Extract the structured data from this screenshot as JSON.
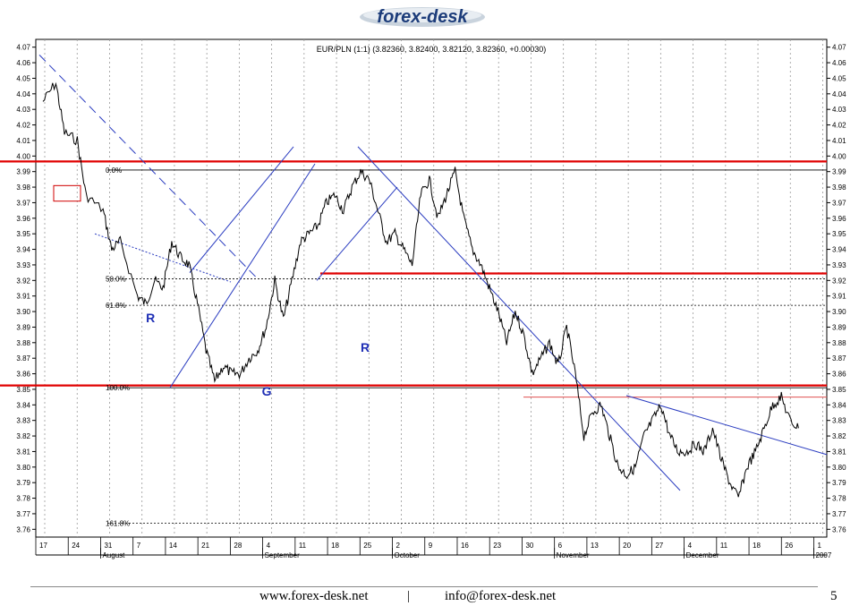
{
  "logo": {
    "text": "forex-desk"
  },
  "chart_data": {
    "type": "line",
    "title": "EUR/PLN (1:1) (3.82360, 3.82400, 3.82120, 3.82360, +0.00030)",
    "ylim": [
      3.755,
      4.075
    ],
    "y_ticks": [
      "4.07",
      "4.06",
      "4.05",
      "4.04",
      "4.03",
      "4.02",
      "4.01",
      "4.00",
      "3.99",
      "3.98",
      "3.97",
      "3.96",
      "3.95",
      "3.94",
      "3.93",
      "3.92",
      "3.91",
      "3.90",
      "3.89",
      "3.88",
      "3.87",
      "3.86",
      "3.85",
      "3.84",
      "3.83",
      "3.82",
      "3.81",
      "3.80",
      "3.79",
      "3.78",
      "3.77",
      "3.76"
    ],
    "x_day_ticks": [
      "17",
      "24",
      "31",
      "7",
      "14",
      "21",
      "28",
      "4",
      "11",
      "18",
      "25",
      "2",
      "9",
      "16",
      "23",
      "30",
      "6",
      "13",
      "20",
      "27",
      "4",
      "11",
      "18",
      "26",
      "1"
    ],
    "month_labels": [
      "August",
      "September",
      "October",
      "November",
      "December",
      "2007"
    ],
    "grid": true,
    "series": [
      {
        "x": [
          0,
          3,
          5,
          8,
          10,
          14,
          16,
          18,
          22,
          24,
          26,
          28,
          30,
          32,
          34,
          36,
          38,
          40,
          42,
          44,
          46,
          48,
          50,
          52,
          54,
          56,
          58,
          60,
          62,
          64,
          66,
          68,
          70,
          72,
          74,
          76,
          78,
          80,
          82,
          84,
          86,
          88,
          90,
          92,
          94,
          96,
          98,
          100,
          102,
          104,
          106,
          108,
          110,
          112,
          114,
          116,
          118,
          120,
          122,
          124,
          126,
          128,
          130,
          132,
          134,
          136,
          138,
          140,
          142,
          144,
          146,
          148,
          150,
          152,
          154,
          156,
          158,
          160,
          162,
          164,
          166,
          168,
          170,
          172,
          174,
          176
        ],
        "y": [
          4.035,
          4.047,
          4.015,
          4.01,
          3.975,
          3.965,
          3.94,
          3.945,
          3.91,
          3.905,
          3.92,
          3.915,
          3.945,
          3.935,
          3.93,
          3.905,
          3.875,
          3.855,
          3.865,
          3.86,
          3.86,
          3.87,
          3.875,
          3.89,
          3.92,
          3.895,
          3.92,
          3.945,
          3.95,
          3.955,
          3.97,
          3.975,
          3.965,
          3.98,
          3.99,
          3.985,
          3.965,
          3.945,
          3.95,
          3.94,
          3.93,
          3.975,
          3.985,
          3.96,
          3.975,
          3.99,
          3.96,
          3.94,
          3.93,
          3.915,
          3.9,
          3.88,
          3.9,
          3.885,
          3.86,
          3.87,
          3.88,
          3.865,
          3.89,
          3.86,
          3.82,
          3.835,
          3.84,
          3.82,
          3.8,
          3.795,
          3.8,
          3.82,
          3.83,
          3.84,
          3.82,
          3.81,
          3.81,
          3.815,
          3.81,
          3.825,
          3.805,
          3.79,
          3.78,
          3.8,
          3.81,
          3.825,
          3.84,
          3.845,
          3.83,
          3.825
        ]
      }
    ],
    "horizontal_levels": [
      {
        "value": 3.9965,
        "color": "#e00000"
      },
      {
        "value": 3.9245,
        "color": "#e00000"
      },
      {
        "value": 3.8525,
        "color": "#e00000"
      },
      {
        "value": 3.845,
        "color": "#e05050"
      }
    ],
    "fibonacci": [
      {
        "label": "0.0%",
        "value": 3.991
      },
      {
        "label": "50.0%",
        "value": 3.921
      },
      {
        "label": "61.8%",
        "value": 3.904
      },
      {
        "label": "100.0%",
        "value": 3.851
      },
      {
        "label": "161.8%",
        "value": 3.764
      }
    ],
    "annotations": [
      {
        "text": "R",
        "x": 24,
        "y": 3.893
      },
      {
        "text": "R",
        "x": 74,
        "y": 3.874
      },
      {
        "text": "G",
        "x": 51,
        "y": 3.846
      }
    ]
  },
  "footer": {
    "website": "www.forex-desk.net",
    "separator": "|",
    "email": "info@forex-desk.net",
    "page_number": "5"
  }
}
